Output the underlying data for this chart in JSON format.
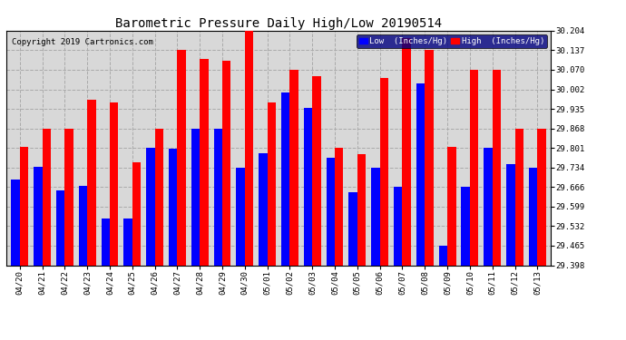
{
  "title": "Barometric Pressure Daily High/Low 20190514",
  "copyright": "Copyright 2019 Cartronics.com",
  "legend_low": "Low  (Inches/Hg)",
  "legend_high": "High  (Inches/Hg)",
  "dates": [
    "04/20",
    "04/21",
    "04/22",
    "04/23",
    "04/24",
    "04/25",
    "04/26",
    "04/27",
    "04/28",
    "04/29",
    "04/30",
    "05/01",
    "05/02",
    "05/03",
    "05/04",
    "05/05",
    "05/06",
    "05/07",
    "05/08",
    "05/09",
    "05/10",
    "05/11",
    "05/12",
    "05/13"
  ],
  "low_values": [
    29.692,
    29.737,
    29.656,
    29.672,
    29.557,
    29.557,
    29.8,
    29.797,
    29.868,
    29.868,
    29.734,
    29.783,
    29.99,
    29.937,
    29.768,
    29.65,
    29.734,
    29.668,
    30.022,
    29.465,
    29.668,
    29.8,
    29.745,
    29.734
  ],
  "high_values": [
    29.803,
    29.868,
    29.868,
    29.968,
    29.957,
    29.75,
    29.868,
    30.137,
    30.108,
    30.1,
    30.204,
    29.957,
    30.07,
    30.048,
    29.8,
    29.78,
    30.04,
    30.178,
    30.137,
    29.803,
    30.07,
    30.07,
    29.868,
    29.868
  ],
  "ylim_min": 29.398,
  "ylim_max": 30.204,
  "yticks": [
    29.398,
    29.465,
    29.532,
    29.599,
    29.666,
    29.734,
    29.801,
    29.868,
    29.935,
    30.002,
    30.07,
    30.137,
    30.204
  ],
  "low_color": "#0000ff",
  "high_color": "#ff0000",
  "bg_color": "#ffffff",
  "plot_bg_color": "#d8d8d8",
  "grid_color": "#aaaaaa",
  "title_fontsize": 10,
  "copyright_fontsize": 6.5,
  "tick_fontsize": 6.5,
  "bar_width": 0.38
}
